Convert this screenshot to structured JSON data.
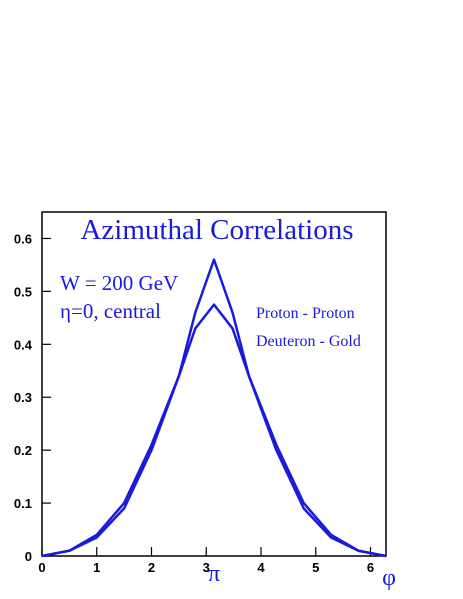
{
  "chart_data": {
    "type": "line",
    "title": "Azimuthal Correlations",
    "annotations": [
      "W = 200 GeV",
      "η=0, central"
    ],
    "x_label": "φ",
    "x_annotations": [
      {
        "x": 3.14159,
        "text": "π"
      }
    ],
    "x": [
      0,
      0.5,
      1.0,
      1.5,
      2.0,
      2.5,
      2.8,
      3.14159,
      3.48,
      3.78,
      4.28,
      4.78,
      5.28,
      5.78,
      6.283
    ],
    "series": [
      {
        "name": "Proton - Proton",
        "color": "#1a1adb",
        "values": [
          0,
          0.01,
          0.035,
          0.09,
          0.2,
          0.34,
          0.46,
          0.56,
          0.46,
          0.34,
          0.2,
          0.09,
          0.035,
          0.01,
          0
        ]
      },
      {
        "name": "Deuteron - Gold",
        "color": "#1a1adb",
        "values": [
          0,
          0.01,
          0.04,
          0.1,
          0.21,
          0.34,
          0.43,
          0.475,
          0.43,
          0.34,
          0.21,
          0.1,
          0.04,
          0.01,
          0
        ]
      }
    ],
    "xlim": [
      0,
      6.283
    ],
    "ylim": [
      0,
      0.65
    ],
    "xticks": [
      0,
      1,
      2,
      3,
      4,
      5,
      6
    ],
    "yticks": [
      0,
      0.1,
      0.2,
      0.3,
      0.4,
      0.5,
      0.6
    ],
    "grid": false
  }
}
